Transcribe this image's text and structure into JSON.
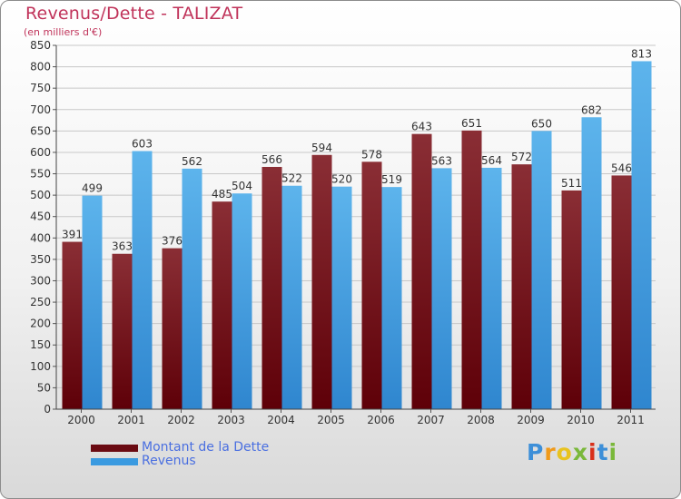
{
  "title": "Revenus/Dette - TALIZAT",
  "subtitle": "(en milliers d'€)",
  "colors": {
    "dette_top": "#8a2e35",
    "dette_bottom": "#5e0008",
    "revenus_top": "#5db4ec",
    "revenus_bottom": "#2f86cf",
    "grid": "#c8c8c8",
    "axis_text": "#333333"
  },
  "legend": [
    {
      "label": "Montant de la Dette",
      "color": "#6a0a12"
    },
    {
      "label": "Revenus",
      "color": "#3a9ae0"
    }
  ],
  "logo": {
    "letters": [
      "P",
      "r",
      "o",
      "x",
      "i",
      "t",
      "i"
    ],
    "colors": [
      "#3d8fd8",
      "#f09a1a",
      "#e8c320",
      "#7ab83a",
      "#d9301a",
      "#3d8fd8",
      "#7ab83a"
    ]
  },
  "chart_data": {
    "type": "bar",
    "categories": [
      "2000",
      "2001",
      "2002",
      "2003",
      "2004",
      "2005",
      "2006",
      "2007",
      "2008",
      "2009",
      "2010",
      "2011"
    ],
    "series": [
      {
        "name": "Montant de la Dette",
        "values": [
          391,
          363,
          376,
          485,
          566,
          594,
          578,
          643,
          651,
          572,
          511,
          546
        ]
      },
      {
        "name": "Revenus",
        "values": [
          499,
          603,
          562,
          504,
          522,
          520,
          519,
          563,
          564,
          650,
          682,
          813
        ]
      }
    ],
    "ylim": [
      0,
      850
    ],
    "yticks": [
      0,
      50,
      100,
      150,
      200,
      250,
      300,
      350,
      400,
      450,
      500,
      550,
      600,
      650,
      700,
      750,
      800,
      850
    ],
    "grid": true,
    "legend_position": "bottom-left"
  }
}
